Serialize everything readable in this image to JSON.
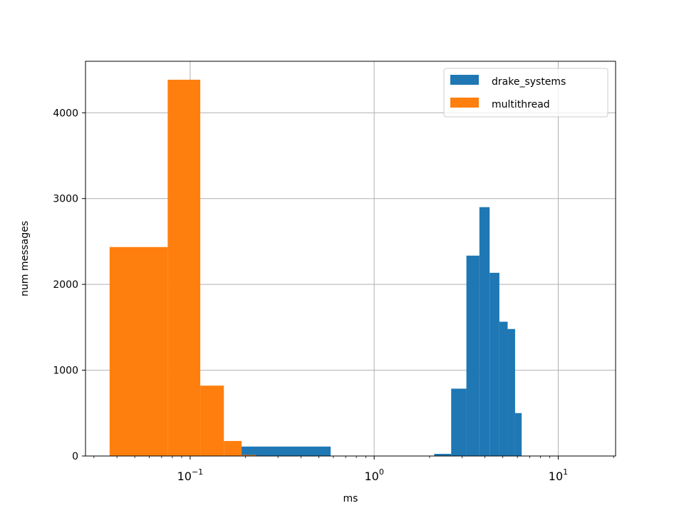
{
  "chart_data": {
    "type": "histogram",
    "xlabel": "ms",
    "ylabel": "num messages",
    "xscale": "log",
    "xlim": [
      0.027,
      20.5
    ],
    "ylim": [
      0,
      4600
    ],
    "grid": true,
    "legend_position": "top-right",
    "x_ticks": [
      {
        "value": 0.1,
        "base": "10",
        "exp": "−1"
      },
      {
        "value": 1,
        "base": "10",
        "exp": "0"
      },
      {
        "value": 10,
        "base": "10",
        "exp": "1"
      }
    ],
    "y_ticks": [
      {
        "value": 0,
        "label": "0"
      },
      {
        "value": 1000,
        "label": "1000"
      },
      {
        "value": 2000,
        "label": "2000"
      },
      {
        "value": 3000,
        "label": "3000"
      },
      {
        "value": 4000,
        "label": "4000"
      }
    ],
    "series": [
      {
        "name": "drake_systems",
        "color": "#1f77b4",
        "bins": [
          {
            "x0": 0.19,
            "x1": 0.58,
            "count": 110
          },
          {
            "x0": 2.12,
            "x1": 2.62,
            "count": 25
          },
          {
            "x0": 2.62,
            "x1": 3.17,
            "count": 785
          },
          {
            "x0": 3.17,
            "x1": 3.73,
            "count": 2335
          },
          {
            "x0": 3.73,
            "x1": 4.24,
            "count": 2900
          },
          {
            "x0": 4.24,
            "x1": 4.79,
            "count": 2135
          },
          {
            "x0": 4.79,
            "x1": 5.31,
            "count": 1565
          },
          {
            "x0": 5.31,
            "x1": 5.83,
            "count": 1480
          },
          {
            "x0": 5.83,
            "x1": 6.33,
            "count": 500
          }
        ]
      },
      {
        "name": "multithread",
        "color": "#ff7f0e",
        "bins": [
          {
            "x0": 0.0365,
            "x1": 0.0755,
            "count": 2435
          },
          {
            "x0": 0.0755,
            "x1": 0.1135,
            "count": 4385
          },
          {
            "x0": 0.1135,
            "x1": 0.1525,
            "count": 820
          },
          {
            "x0": 0.1525,
            "x1": 0.1905,
            "count": 175
          },
          {
            "x0": 0.1905,
            "x1": 0.2285,
            "count": 12
          }
        ]
      }
    ]
  }
}
